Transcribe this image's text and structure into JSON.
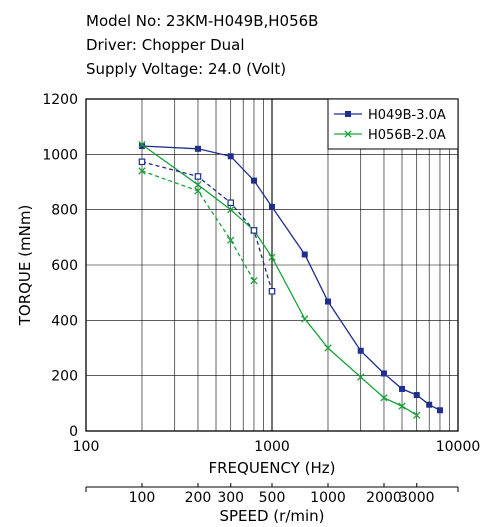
{
  "header": {
    "model": "Model No: 23KM-H049B,H056B",
    "driver": "Driver: Chopper Dual",
    "voltage": "Supply Voltage: 24.0 (Volt)"
  },
  "chart_data": {
    "type": "line",
    "title": "",
    "xlabel": "FREQUENCY (Hz)",
    "ylabel": "TORQUE (mNm)",
    "xscale": "log",
    "xlim": [
      100,
      10000
    ],
    "ylim": [
      0,
      1200
    ],
    "x_ticks": [
      "100",
      "1000",
      "10000"
    ],
    "y_ticks": [
      "0",
      "200",
      "400",
      "600",
      "800",
      "1000",
      "1200"
    ],
    "secondary_axis": {
      "label": "SPEED (r/min)",
      "scale": "log",
      "ticks": [
        {
          "label": "100",
          "x": 200
        },
        {
          "label": "200",
          "x": 400
        },
        {
          "label": "300",
          "x": 600
        },
        {
          "label": "500",
          "x": 1000
        },
        {
          "label": "1000",
          "x": 2000
        },
        {
          "label": "2000",
          "x": 4000
        },
        {
          "label": "3000",
          "x": 6000
        }
      ]
    },
    "grid": true,
    "legend": "top-right",
    "series": [
      {
        "name": "H049B-3.0A",
        "color": "#1f2e8f",
        "marker": "square",
        "style": "solid",
        "x": [
          200,
          400,
          600,
          800,
          1000,
          1500,
          2000,
          3000,
          4000,
          5000,
          6000,
          7000,
          8000
        ],
        "y": [
          1030,
          1020,
          993,
          905,
          810,
          638,
          468,
          290,
          208,
          152,
          130,
          95,
          75
        ]
      },
      {
        "name": "H056B-2.0A",
        "color": "#1aa33a",
        "marker": "x",
        "style": "solid",
        "x": [
          200,
          400,
          600,
          800,
          1000,
          1500,
          2000,
          3000,
          4000,
          5000,
          6000
        ],
        "y": [
          1035,
          890,
          800,
          725,
          628,
          405,
          300,
          195,
          120,
          90,
          57
        ]
      },
      {
        "name": "",
        "color": "#1f2e8f",
        "marker": "square-open",
        "style": "dashed",
        "x": [
          200,
          400,
          600,
          800,
          1000
        ],
        "y": [
          973,
          920,
          825,
          725,
          505
        ]
      },
      {
        "name": "",
        "color": "#1aa33a",
        "marker": "x",
        "style": "dashed",
        "x": [
          200,
          400,
          600,
          800
        ],
        "y": [
          940,
          868,
          690,
          543
        ]
      }
    ]
  }
}
